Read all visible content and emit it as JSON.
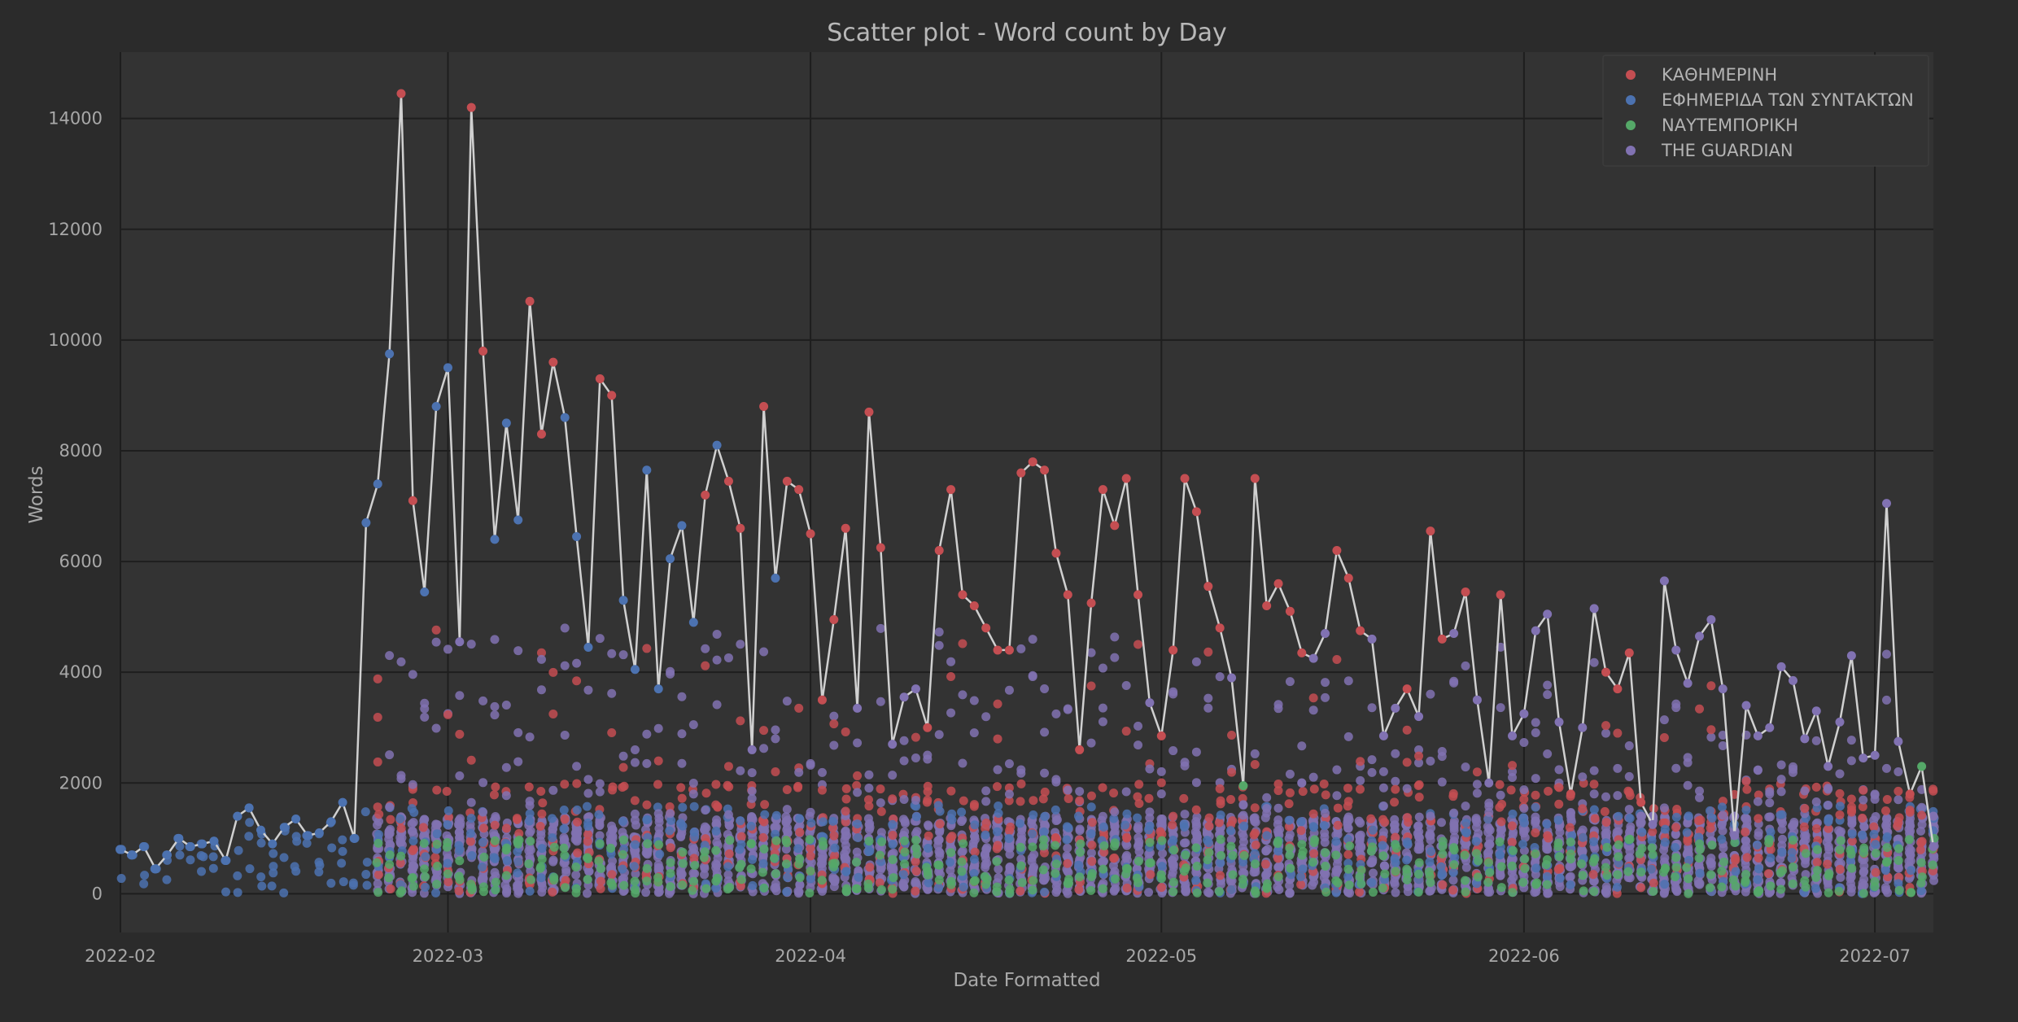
{
  "chart_data": {
    "type": "scatter",
    "title": "Scatter plot - Word count by Day",
    "xlabel": "Date Formatted",
    "ylabel": "Words",
    "xlim": [
      "2022-02-01",
      "2022-07-06"
    ],
    "ylim": [
      -700,
      15200
    ],
    "x_ticks": [
      "2022-02",
      "2022-03",
      "2022-04",
      "2022-05",
      "2022-06",
      "2022-07"
    ],
    "y_ticks": [
      0,
      2000,
      4000,
      6000,
      8000,
      10000,
      12000,
      14000
    ],
    "grid": true,
    "legend_position": "top-right",
    "colors": {
      "background": "#2b2b2b",
      "plot_background": "#333333",
      "grid": "#1e1e1e",
      "line": "#d0d0d0"
    },
    "series": [
      {
        "name": "ΚΑΘΗΜΕΡΙΝΗ",
        "color": "#c44e52",
        "y_range": [
          0,
          2000
        ]
      },
      {
        "name": "ΕΦΗΜΕΡΙΔΑ ΤΩΝ ΣΥΝΤΑΚΤΩΝ",
        "color": "#4c72b0",
        "y_range": [
          0,
          1600
        ]
      },
      {
        "name": "ΝΑΥΤΕΜΠΟΡΙΚΗ",
        "color": "#55a868",
        "y_range": [
          0,
          1000
        ]
      },
      {
        "name": "THE GUARDIAN",
        "color": "#8172b2",
        "y_range": [
          0,
          1400
        ]
      }
    ],
    "daily_max": {
      "start_date": "2022-02-01",
      "values": [
        800,
        700,
        850,
        450,
        700,
        1000,
        850,
        900,
        950,
        600,
        1400,
        1550,
        1150,
        900,
        1200,
        1350,
        1050,
        1100,
        1300,
        1650,
        1000,
        6700,
        7400,
        9750,
        14450,
        7100,
        5450,
        8800,
        9500,
        4550,
        14200,
        9800,
        6400,
        8500,
        6750,
        10700,
        8300,
        9600,
        8600,
        6450,
        4450,
        9300,
        9000,
        5300,
        4050,
        7650,
        3700,
        6050,
        6650,
        4900,
        7200,
        8100,
        7450,
        6600,
        2600,
        8800,
        5700,
        7450,
        7300,
        6500,
        3500,
        4950,
        6600,
        3350,
        8700,
        6250,
        2700,
        3550,
        3700,
        3000,
        6200,
        7300,
        5400,
        5200,
        4800,
        4400,
        4400,
        7600,
        7800,
        7650,
        6150,
        5400,
        2600,
        5250,
        7300,
        6650,
        7500,
        5400,
        3450,
        2850,
        4400,
        7500,
        6900,
        5550,
        4800,
        3900,
        1950,
        7500,
        5200,
        5600,
        5100,
        4350,
        4250,
        4700,
        6200,
        5700,
        4750,
        4600,
        2850,
        3350,
        3700,
        3200,
        6550,
        4600,
        4700,
        5450,
        3500,
        2000,
        5400,
        2850,
        3250,
        4750,
        5050,
        3100,
        1800,
        3000,
        5150,
        4000,
        3700,
        4350,
        1650,
        1250,
        5650,
        4400,
        3800,
        4650,
        4950,
        3700,
        1050,
        3400,
        2850,
        3000,
        4100,
        3850,
        2800,
        3300,
        2300,
        3100,
        4300,
        2450,
        2500,
        7050,
        2750,
        1800,
        2300,
        850
      ],
      "colors": [
        "#4c72b0",
        "#4c72b0",
        "#4c72b0",
        "#4c72b0",
        "#4c72b0",
        "#4c72b0",
        "#4c72b0",
        "#4c72b0",
        "#4c72b0",
        "#4c72b0",
        "#4c72b0",
        "#4c72b0",
        "#4c72b0",
        "#4c72b0",
        "#4c72b0",
        "#4c72b0",
        "#4c72b0",
        "#4c72b0",
        "#4c72b0",
        "#4c72b0",
        "#4c72b0",
        "#4c72b0",
        "#4c72b0",
        "#4c72b0",
        "#c44e52",
        "#c44e52",
        "#4c72b0",
        "#4c72b0",
        "#4c72b0",
        "#8172b2",
        "#c44e52",
        "#c44e52",
        "#4c72b0",
        "#4c72b0",
        "#4c72b0",
        "#c44e52",
        "#c44e52",
        "#c44e52",
        "#4c72b0",
        "#4c72b0",
        "#4c72b0",
        "#c44e52",
        "#c44e52",
        "#4c72b0",
        "#4c72b0",
        "#4c72b0",
        "#4c72b0",
        "#4c72b0",
        "#4c72b0",
        "#4c72b0",
        "#c44e52",
        "#4c72b0",
        "#c44e52",
        "#c44e52",
        "#8172b2",
        "#c44e52",
        "#4c72b0",
        "#c44e52",
        "#c44e52",
        "#c44e52",
        "#c44e52",
        "#c44e52",
        "#c44e52",
        "#8172b2",
        "#c44e52",
        "#c44e52",
        "#8172b2",
        "#8172b2",
        "#8172b2",
        "#c44e52",
        "#c44e52",
        "#c44e52",
        "#c44e52",
        "#c44e52",
        "#c44e52",
        "#c44e52",
        "#c44e52",
        "#c44e52",
        "#c44e52",
        "#c44e52",
        "#c44e52",
        "#c44e52",
        "#c44e52",
        "#c44e52",
        "#c44e52",
        "#c44e52",
        "#c44e52",
        "#c44e52",
        "#8172b2",
        "#c44e52",
        "#c44e52",
        "#c44e52",
        "#c44e52",
        "#c44e52",
        "#c44e52",
        "#8172b2",
        "#55a868",
        "#c44e52",
        "#c44e52",
        "#c44e52",
        "#c44e52",
        "#c44e52",
        "#8172b2",
        "#8172b2",
        "#c44e52",
        "#c44e52",
        "#c44e52",
        "#8172b2",
        "#8172b2",
        "#8172b2",
        "#c44e52",
        "#8172b2",
        "#c44e52",
        "#c44e52",
        "#8172b2",
        "#c44e52",
        "#8172b2",
        "#8172b2",
        "#c44e52",
        "#8172b2",
        "#8172b2",
        "#8172b2",
        "#8172b2",
        "#8172b2",
        "#c44e52",
        "#8172b2",
        "#8172b2",
        "#c44e52",
        "#c44e52",
        "#c44e52",
        "#c44e52",
        "#8172b2",
        "#8172b2",
        "#8172b2",
        "#8172b2",
        "#8172b2",
        "#8172b2",
        "#8172b2",
        "#8172b2",
        "#8172b2",
        "#8172b2",
        "#8172b2",
        "#8172b2",
        "#8172b2",
        "#8172b2",
        "#8172b2",
        "#8172b2",
        "#8172b2",
        "#8172b2",
        "#8172b2",
        "#8172b2",
        "#8172b2",
        "#8172b2",
        "#c44e52",
        "#55a868",
        "#8172b2"
      ]
    }
  }
}
